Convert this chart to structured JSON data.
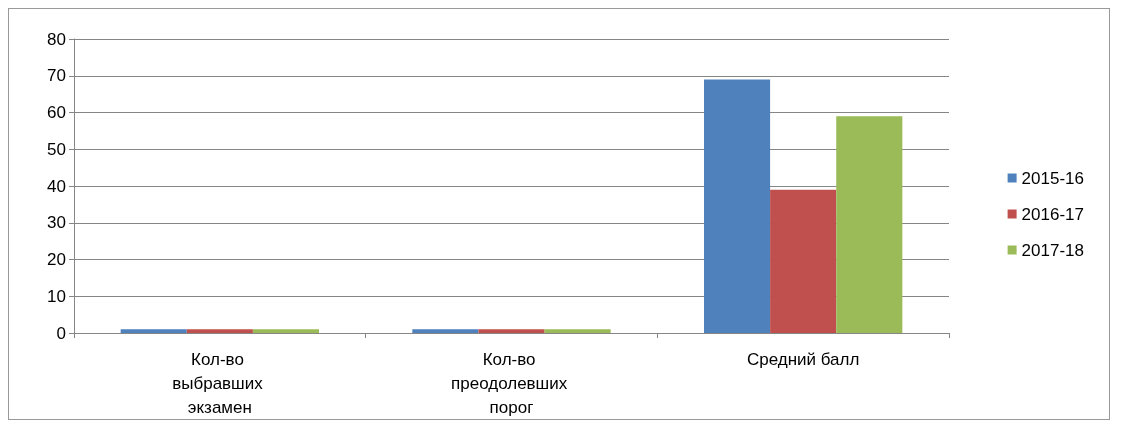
{
  "chart_data": {
    "type": "bar",
    "categories": [
      "Кол-во выбравших экзамен",
      "Кол-во преодолевших порог",
      "Средний балл"
    ],
    "series": [
      {
        "name": "2015-16",
        "color": "#4f81bd",
        "values": [
          1,
          1,
          69
        ]
      },
      {
        "name": "2016-17",
        "color": "#c0504d",
        "values": [
          1,
          1,
          39
        ]
      },
      {
        "name": "2017-18",
        "color": "#9bbb59",
        "values": [
          1,
          1,
          59
        ]
      }
    ],
    "ylim": [
      0,
      80
    ],
    "yticks": [
      0,
      10,
      20,
      30,
      40,
      50,
      60,
      70,
      80
    ],
    "grid": "y",
    "legend": "right"
  }
}
